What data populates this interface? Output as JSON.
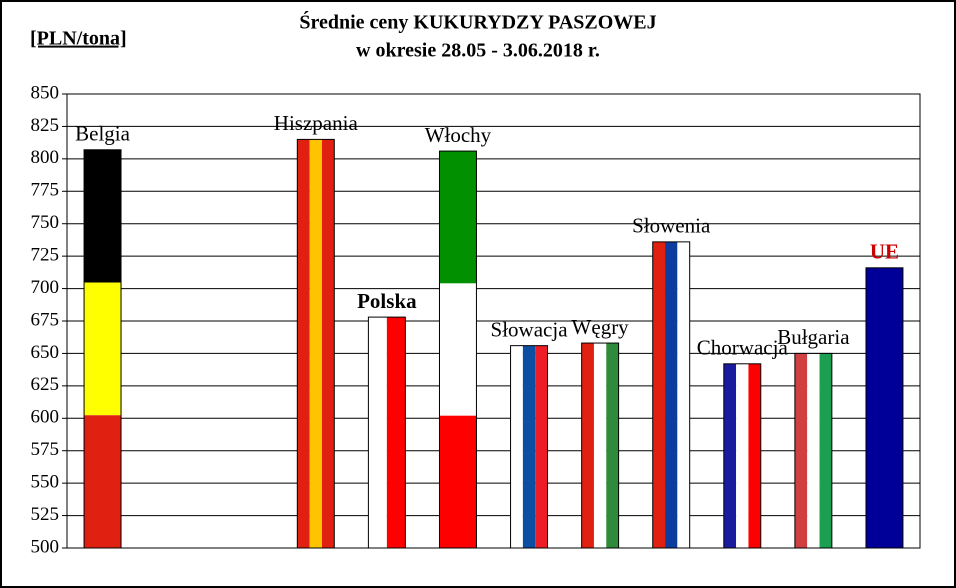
{
  "chart_data": {
    "type": "flag-bar",
    "title": "Średnie ceny KUKURYDZY PASZOWEJ",
    "subtitle": "w okresie  28.05 - 3.06.2018 r.",
    "y_label": "[PLN/tona]",
    "categories": [
      "Belgia",
      null,
      null,
      "Hiszpania",
      "Polska",
      "Włochy",
      "Słowacja",
      "Węgry",
      "Słowenia",
      "Chorwacja",
      "Bułgaria",
      "UE"
    ],
    "values": [
      807,
      null,
      null,
      815,
      678,
      806,
      656,
      658,
      736,
      642,
      650,
      716
    ],
    "bar_colors": [
      [
        "#000000",
        "#ffff00",
        "#e02010"
      ],
      [],
      [],
      [
        "#e02010",
        "#ffc400",
        "#e02010"
      ],
      [
        "#ffffff",
        "#ff0000"
      ],
      [
        "#009000",
        "#ffffff",
        "#ff0000"
      ],
      [
        "#ffffff",
        "#0b4ea2",
        "#ee1c25"
      ],
      [
        "#e02010",
        "#ffffff",
        "#2e8b3a"
      ],
      [
        "#e02010",
        "#0b3c9e",
        "#ffffff"
      ],
      [
        "#1a1a9e",
        "#ffffff",
        "#ff0000"
      ],
      [
        "#d04040",
        "#ffffff",
        "#1aa050"
      ],
      [
        "#000099"
      ]
    ],
    "stripe_direction": [
      "horizontal",
      null,
      null,
      "vertical",
      "vertical",
      "horizontal",
      "vertical",
      "vertical",
      "vertical",
      "vertical",
      "vertical",
      "vertical"
    ],
    "label_bold": [
      false,
      false,
      false,
      false,
      true,
      false,
      false,
      false,
      false,
      false,
      false,
      true
    ],
    "label_colors": [
      "#000000",
      null,
      null,
      "#000000",
      "#000000",
      "#000000",
      "#000000",
      "#000000",
      "#000000",
      "#000000",
      "#000000",
      "#cc0000"
    ],
    "ylim": [
      500,
      850
    ],
    "yticks": [
      500,
      525,
      550,
      575,
      600,
      625,
      650,
      675,
      700,
      725,
      750,
      775,
      800,
      825,
      850
    ],
    "grid": true
  }
}
